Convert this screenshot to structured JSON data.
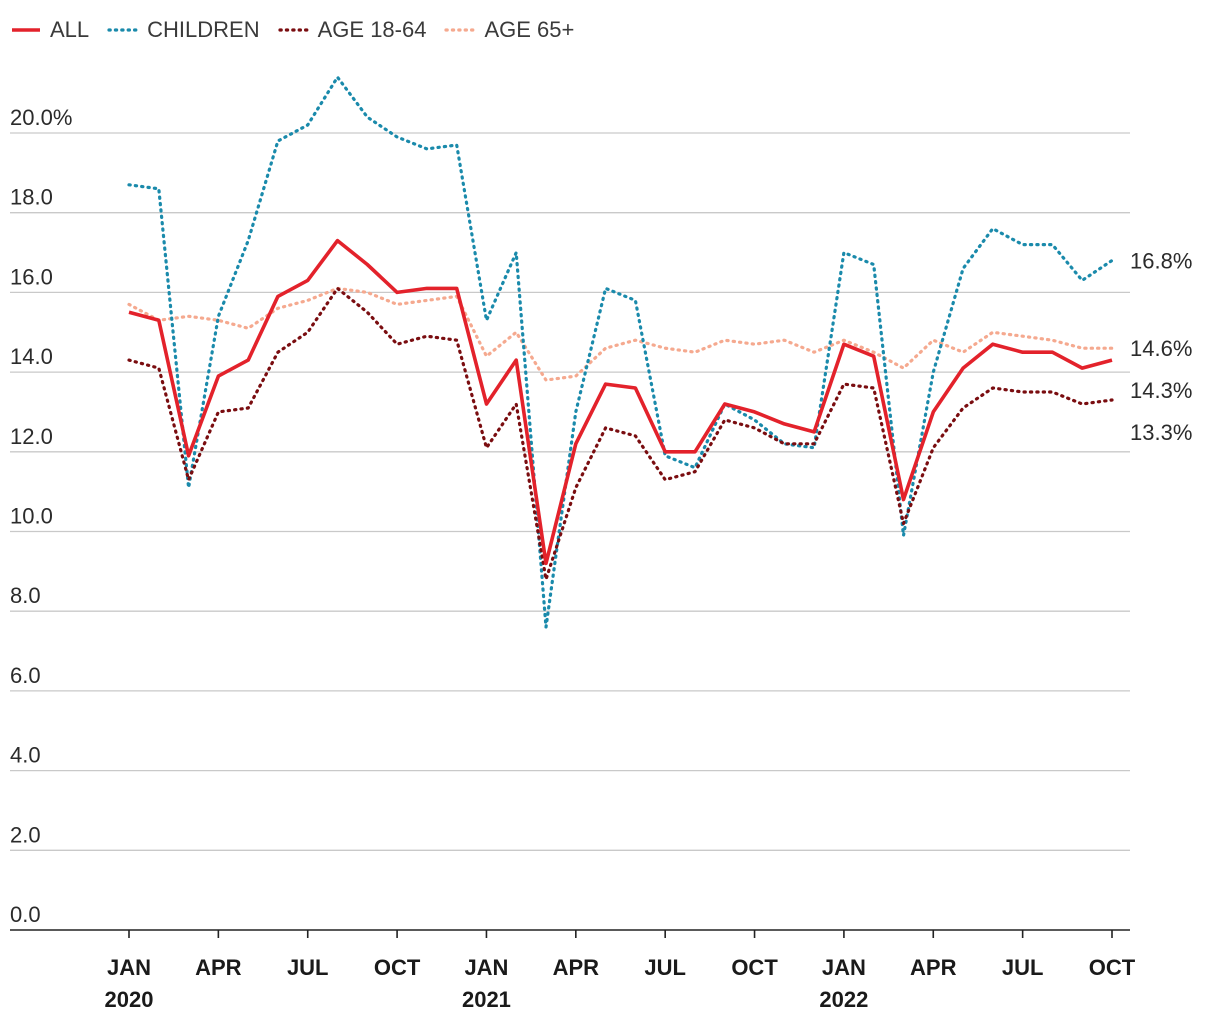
{
  "chart_data": {
    "type": "line",
    "ylim": [
      0,
      20
    ],
    "y_ticks": [
      0,
      2,
      4,
      6,
      8,
      10,
      12,
      14,
      16,
      18,
      20
    ],
    "y_tick_labels": [
      "0.0",
      "2.0",
      "4.0",
      "6.0",
      "8.0",
      "10.0",
      "12.0",
      "14.0",
      "16.0",
      "18.0",
      "20.0%"
    ],
    "x_months": 34,
    "x_ticks": [
      {
        "month_index": 0,
        "label": "JAN",
        "year": "2020"
      },
      {
        "month_index": 3,
        "label": "APR",
        "year": ""
      },
      {
        "month_index": 6,
        "label": "JUL",
        "year": ""
      },
      {
        "month_index": 9,
        "label": "OCT",
        "year": ""
      },
      {
        "month_index": 12,
        "label": "JAN",
        "year": "2021"
      },
      {
        "month_index": 15,
        "label": "APR",
        "year": ""
      },
      {
        "month_index": 18,
        "label": "JUL",
        "year": ""
      },
      {
        "month_index": 21,
        "label": "OCT",
        "year": ""
      },
      {
        "month_index": 24,
        "label": "JAN",
        "year": "2022"
      },
      {
        "month_index": 27,
        "label": "APR",
        "year": ""
      },
      {
        "month_index": 30,
        "label": "JUL",
        "year": ""
      },
      {
        "month_index": 33,
        "label": "OCT",
        "year": ""
      }
    ],
    "grid": true,
    "legend_position": "top-left",
    "series": [
      {
        "name": "ALL",
        "color": "#e3222b",
        "style": "solid",
        "end_label": "14.3%",
        "values": [
          15.5,
          15.3,
          11.9,
          13.9,
          14.3,
          15.9,
          16.3,
          17.3,
          16.7,
          16.0,
          16.1,
          16.1,
          13.2,
          14.3,
          9.2,
          12.2,
          13.7,
          13.6,
          12.0,
          12.0,
          13.2,
          13.0,
          12.7,
          12.5,
          14.7,
          14.4,
          10.8,
          13.0,
          14.1,
          14.7,
          14.5,
          14.5,
          14.1,
          14.3
        ]
      },
      {
        "name": "CHILDREN",
        "color": "#1a8aab",
        "style": "dotted",
        "end_label": "16.8%",
        "values": [
          18.7,
          18.6,
          11.1,
          15.4,
          17.3,
          19.8,
          20.2,
          21.4,
          20.4,
          19.9,
          19.6,
          19.7,
          15.3,
          17.0,
          7.6,
          13.0,
          16.1,
          15.8,
          11.9,
          11.6,
          13.2,
          12.8,
          12.2,
          12.1,
          17.0,
          16.7,
          9.9,
          14.0,
          16.6,
          17.6,
          17.2,
          17.2,
          16.3,
          16.8
        ]
      },
      {
        "name": "AGE 18-64",
        "color": "#7a0d10",
        "style": "dotted",
        "end_label": "13.3%",
        "values": [
          14.3,
          14.1,
          11.3,
          13.0,
          13.1,
          14.5,
          15.0,
          16.1,
          15.5,
          14.7,
          14.9,
          14.8,
          12.1,
          13.2,
          8.8,
          11.1,
          12.6,
          12.4,
          11.3,
          11.5,
          12.8,
          12.6,
          12.2,
          12.2,
          13.7,
          13.6,
          10.2,
          12.1,
          13.1,
          13.6,
          13.5,
          13.5,
          13.2,
          13.3
        ]
      },
      {
        "name": "AGE 65+",
        "color": "#f5a98f",
        "style": "dotted",
        "end_label": "14.6%",
        "values": [
          15.7,
          15.3,
          15.4,
          15.3,
          15.1,
          15.6,
          15.8,
          16.1,
          16.0,
          15.7,
          15.8,
          15.9,
          14.4,
          15.0,
          13.8,
          13.9,
          14.6,
          14.8,
          14.6,
          14.5,
          14.8,
          14.7,
          14.8,
          14.5,
          14.8,
          14.5,
          14.1,
          14.8,
          14.5,
          15.0,
          14.9,
          14.8,
          14.6,
          14.6
        ]
      }
    ]
  }
}
